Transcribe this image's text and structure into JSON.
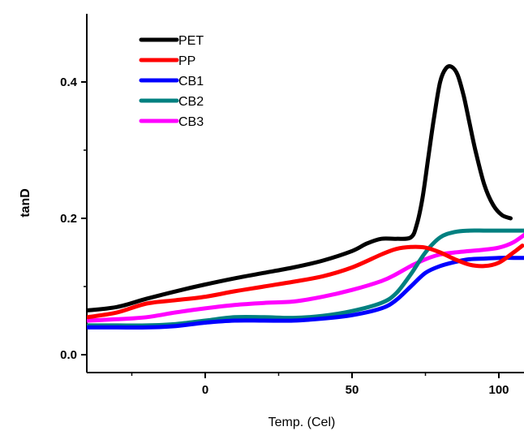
{
  "chart_data": {
    "type": "line",
    "title": "",
    "xlabel": "Temp. (Cel)",
    "ylabel": "tanD",
    "xlim": [
      -40,
      110
    ],
    "ylim": [
      -0.03,
      0.5
    ],
    "xticks": [
      0,
      50,
      100
    ],
    "xtick_labels": [
      "0",
      "50",
      "100"
    ],
    "yticks": [
      0.0,
      0.2,
      0.4
    ],
    "ytick_labels": [
      "0.0",
      "0.2",
      "0.4"
    ],
    "legend_position": "top-left",
    "grid": false,
    "series": [
      {
        "name": "PET",
        "color": "#000000",
        "x": [
          -40,
          -30,
          -20,
          -10,
          0,
          10,
          20,
          30,
          40,
          50,
          55,
          60,
          65,
          70,
          72,
          74,
          76,
          78,
          80,
          82,
          84,
          86,
          88,
          90,
          92,
          95,
          98,
          101,
          104
        ],
        "y": [
          0.065,
          0.07,
          0.082,
          0.093,
          0.103,
          0.112,
          0.12,
          0.128,
          0.138,
          0.152,
          0.163,
          0.17,
          0.17,
          0.172,
          0.19,
          0.23,
          0.29,
          0.35,
          0.4,
          0.42,
          0.422,
          0.41,
          0.38,
          0.34,
          0.3,
          0.25,
          0.22,
          0.205,
          0.2
        ]
      },
      {
        "name": "PP",
        "color": "#ff0000",
        "x": [
          -40,
          -30,
          -20,
          -10,
          0,
          10,
          20,
          30,
          40,
          50,
          60,
          65,
          70,
          75,
          80,
          85,
          90,
          95,
          100,
          105,
          108
        ],
        "y": [
          0.055,
          0.062,
          0.075,
          0.08,
          0.085,
          0.093,
          0.1,
          0.107,
          0.115,
          0.128,
          0.147,
          0.155,
          0.158,
          0.157,
          0.15,
          0.14,
          0.132,
          0.13,
          0.135,
          0.15,
          0.16
        ]
      },
      {
        "name": "CB1",
        "color": "#0000ff",
        "x": [
          -40,
          -30,
          -20,
          -10,
          0,
          10,
          20,
          30,
          40,
          50,
          60,
          65,
          70,
          75,
          80,
          85,
          90,
          95,
          100,
          105,
          110
        ],
        "y": [
          0.04,
          0.04,
          0.04,
          0.042,
          0.047,
          0.05,
          0.05,
          0.05,
          0.053,
          0.058,
          0.068,
          0.08,
          0.1,
          0.12,
          0.13,
          0.136,
          0.14,
          0.141,
          0.142,
          0.142,
          0.142
        ]
      },
      {
        "name": "CB2",
        "color": "#008080",
        "x": [
          -40,
          -30,
          -20,
          -10,
          0,
          10,
          20,
          30,
          40,
          50,
          60,
          65,
          70,
          75,
          80,
          85,
          90,
          95,
          100,
          105,
          110
        ],
        "y": [
          0.043,
          0.043,
          0.043,
          0.045,
          0.05,
          0.055,
          0.055,
          0.054,
          0.057,
          0.064,
          0.076,
          0.09,
          0.118,
          0.15,
          0.172,
          0.18,
          0.182,
          0.182,
          0.182,
          0.182,
          0.182
        ]
      },
      {
        "name": "CB3",
        "color": "#ff00ff",
        "x": [
          -40,
          -30,
          -20,
          -10,
          0,
          10,
          20,
          30,
          40,
          50,
          60,
          65,
          70,
          75,
          80,
          85,
          90,
          95,
          100,
          105,
          110
        ],
        "y": [
          0.05,
          0.052,
          0.055,
          0.062,
          0.068,
          0.073,
          0.076,
          0.078,
          0.085,
          0.095,
          0.108,
          0.118,
          0.13,
          0.14,
          0.147,
          0.15,
          0.152,
          0.154,
          0.157,
          0.165,
          0.18
        ]
      }
    ]
  }
}
